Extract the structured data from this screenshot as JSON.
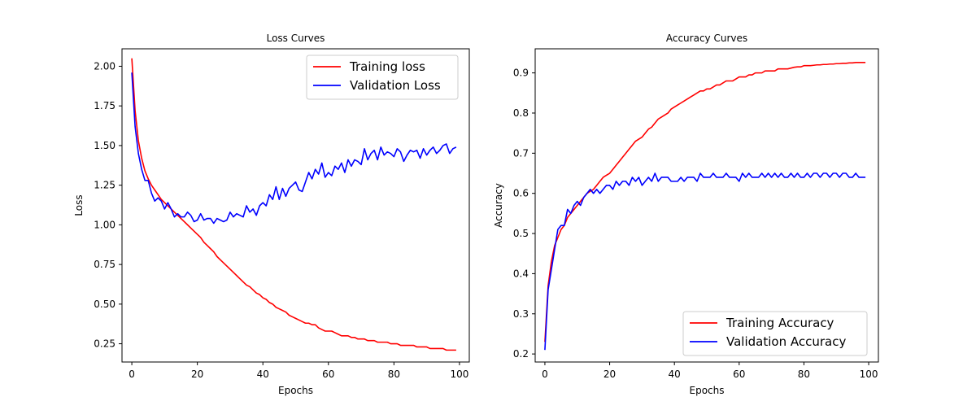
{
  "chart_data": [
    {
      "type": "line",
      "title": "Loss Curves",
      "xlabel": "Epochs",
      "ylabel": "Loss",
      "xlim": [
        -3,
        103
      ],
      "ylim": [
        0.135,
        2.11
      ],
      "xticks": [
        0,
        20,
        40,
        60,
        80,
        100
      ],
      "xtick_labels": [
        "0",
        "20",
        "40",
        "60",
        "80",
        "100"
      ],
      "yticks": [
        0.25,
        0.5,
        0.75,
        1.0,
        1.25,
        1.5,
        1.75,
        2.0
      ],
      "ytick_labels": [
        "0.25",
        "0.50",
        "0.75",
        "1.00",
        "1.25",
        "1.50",
        "1.75",
        "2.00"
      ],
      "grid": false,
      "legend_position": "top-right",
      "series": [
        {
          "name": "Training loss",
          "color": "#ff0000",
          "x": [
            0,
            1,
            2,
            3,
            4,
            5,
            6,
            7,
            8,
            9,
            10,
            11,
            12,
            13,
            14,
            15,
            16,
            17,
            18,
            19,
            20,
            21,
            22,
            23,
            24,
            25,
            26,
            27,
            28,
            29,
            30,
            31,
            32,
            33,
            34,
            35,
            36,
            37,
            38,
            39,
            40,
            41,
            42,
            43,
            44,
            45,
            46,
            47,
            48,
            49,
            50,
            51,
            52,
            53,
            54,
            55,
            56,
            57,
            58,
            59,
            60,
            61,
            62,
            63,
            64,
            65,
            66,
            67,
            68,
            69,
            70,
            71,
            72,
            73,
            74,
            75,
            76,
            77,
            78,
            79,
            80,
            81,
            82,
            83,
            84,
            85,
            86,
            87,
            88,
            89,
            90,
            91,
            92,
            93,
            94,
            95,
            96,
            97,
            98,
            99
          ],
          "values": [
            2.05,
            1.72,
            1.53,
            1.42,
            1.34,
            1.29,
            1.25,
            1.22,
            1.19,
            1.16,
            1.14,
            1.12,
            1.1,
            1.08,
            1.06,
            1.04,
            1.02,
            1.0,
            0.98,
            0.96,
            0.94,
            0.92,
            0.89,
            0.87,
            0.85,
            0.83,
            0.8,
            0.78,
            0.76,
            0.74,
            0.72,
            0.7,
            0.68,
            0.66,
            0.64,
            0.62,
            0.61,
            0.59,
            0.57,
            0.56,
            0.54,
            0.53,
            0.51,
            0.5,
            0.48,
            0.47,
            0.46,
            0.45,
            0.43,
            0.42,
            0.41,
            0.4,
            0.39,
            0.38,
            0.38,
            0.37,
            0.37,
            0.35,
            0.34,
            0.33,
            0.33,
            0.33,
            0.32,
            0.31,
            0.3,
            0.3,
            0.3,
            0.29,
            0.29,
            0.28,
            0.28,
            0.28,
            0.27,
            0.27,
            0.27,
            0.26,
            0.26,
            0.26,
            0.26,
            0.25,
            0.25,
            0.25,
            0.24,
            0.24,
            0.24,
            0.24,
            0.24,
            0.23,
            0.23,
            0.23,
            0.23,
            0.22,
            0.22,
            0.22,
            0.22,
            0.22,
            0.21,
            0.21,
            0.21,
            0.21
          ]
        },
        {
          "name": "Validation Loss",
          "color": "#0000ff",
          "x": [
            0,
            1,
            2,
            3,
            4,
            5,
            6,
            7,
            8,
            9,
            10,
            11,
            12,
            13,
            14,
            15,
            16,
            17,
            18,
            19,
            20,
            21,
            22,
            23,
            24,
            25,
            26,
            27,
            28,
            29,
            30,
            31,
            32,
            33,
            34,
            35,
            36,
            37,
            38,
            39,
            40,
            41,
            42,
            43,
            44,
            45,
            46,
            47,
            48,
            49,
            50,
            51,
            52,
            53,
            54,
            55,
            56,
            57,
            58,
            59,
            60,
            61,
            62,
            63,
            64,
            65,
            66,
            67,
            68,
            69,
            70,
            71,
            72,
            73,
            74,
            75,
            76,
            77,
            78,
            79,
            80,
            81,
            82,
            83,
            84,
            85,
            86,
            87,
            88,
            89,
            90,
            91,
            92,
            93,
            94,
            95,
            96,
            97,
            98,
            99
          ],
          "values": [
            1.96,
            1.62,
            1.45,
            1.35,
            1.28,
            1.28,
            1.2,
            1.15,
            1.17,
            1.15,
            1.1,
            1.14,
            1.1,
            1.05,
            1.07,
            1.05,
            1.05,
            1.08,
            1.06,
            1.02,
            1.03,
            1.07,
            1.03,
            1.04,
            1.04,
            1.01,
            1.04,
            1.03,
            1.02,
            1.03,
            1.08,
            1.05,
            1.07,
            1.06,
            1.05,
            1.12,
            1.08,
            1.1,
            1.06,
            1.12,
            1.14,
            1.12,
            1.19,
            1.16,
            1.24,
            1.16,
            1.23,
            1.18,
            1.23,
            1.25,
            1.27,
            1.22,
            1.21,
            1.27,
            1.33,
            1.29,
            1.35,
            1.32,
            1.39,
            1.3,
            1.33,
            1.31,
            1.37,
            1.35,
            1.39,
            1.33,
            1.41,
            1.37,
            1.41,
            1.4,
            1.38,
            1.48,
            1.41,
            1.45,
            1.47,
            1.41,
            1.49,
            1.44,
            1.46,
            1.45,
            1.43,
            1.48,
            1.46,
            1.4,
            1.44,
            1.47,
            1.46,
            1.47,
            1.42,
            1.48,
            1.44,
            1.47,
            1.49,
            1.45,
            1.47,
            1.5,
            1.51,
            1.45,
            1.48,
            1.49
          ]
        }
      ]
    },
    {
      "type": "line",
      "title": "Accuracy Curves",
      "xlabel": "Epochs",
      "ylabel": "Accuracy",
      "xlim": [
        -3,
        103
      ],
      "ylim": [
        0.18,
        0.96
      ],
      "xticks": [
        0,
        20,
        40,
        60,
        80,
        100
      ],
      "xtick_labels": [
        "0",
        "20",
        "40",
        "60",
        "80",
        "100"
      ],
      "yticks": [
        0.2,
        0.3,
        0.4,
        0.5,
        0.6,
        0.7,
        0.8,
        0.9
      ],
      "ytick_labels": [
        "0.2",
        "0.3",
        "0.4",
        "0.5",
        "0.6",
        "0.7",
        "0.8",
        "0.9"
      ],
      "grid": false,
      "legend_position": "bottom-right",
      "series": [
        {
          "name": "Training Accuracy",
          "color": "#ff0000",
          "x": [
            0,
            1,
            2,
            3,
            4,
            5,
            6,
            7,
            8,
            9,
            10,
            11,
            12,
            13,
            14,
            15,
            16,
            17,
            18,
            19,
            20,
            21,
            22,
            23,
            24,
            25,
            26,
            27,
            28,
            29,
            30,
            31,
            32,
            33,
            34,
            35,
            36,
            37,
            38,
            39,
            40,
            41,
            42,
            43,
            44,
            45,
            46,
            47,
            48,
            49,
            50,
            51,
            52,
            53,
            54,
            55,
            56,
            57,
            58,
            59,
            60,
            61,
            62,
            63,
            64,
            65,
            66,
            67,
            68,
            69,
            70,
            71,
            72,
            73,
            74,
            75,
            76,
            77,
            78,
            79,
            80,
            81,
            82,
            83,
            84,
            85,
            86,
            87,
            88,
            89,
            90,
            91,
            92,
            93,
            94,
            95,
            96,
            97,
            98,
            99
          ],
          "values": [
            0.23,
            0.37,
            0.43,
            0.47,
            0.49,
            0.51,
            0.52,
            0.54,
            0.55,
            0.56,
            0.57,
            0.58,
            0.59,
            0.6,
            0.605,
            0.61,
            0.62,
            0.63,
            0.64,
            0.645,
            0.65,
            0.66,
            0.67,
            0.68,
            0.69,
            0.7,
            0.71,
            0.72,
            0.73,
            0.735,
            0.74,
            0.75,
            0.76,
            0.765,
            0.775,
            0.785,
            0.79,
            0.795,
            0.8,
            0.81,
            0.815,
            0.82,
            0.825,
            0.83,
            0.835,
            0.84,
            0.845,
            0.85,
            0.855,
            0.855,
            0.86,
            0.86,
            0.865,
            0.87,
            0.87,
            0.875,
            0.88,
            0.88,
            0.88,
            0.885,
            0.89,
            0.89,
            0.89,
            0.895,
            0.895,
            0.9,
            0.9,
            0.9,
            0.905,
            0.905,
            0.905,
            0.905,
            0.91,
            0.91,
            0.91,
            0.91,
            0.912,
            0.914,
            0.915,
            0.915,
            0.918,
            0.918,
            0.918,
            0.919,
            0.92,
            0.92,
            0.921,
            0.921,
            0.922,
            0.922,
            0.923,
            0.923,
            0.924,
            0.924,
            0.925,
            0.925,
            0.926,
            0.926,
            0.926,
            0.926
          ]
        },
        {
          "name": "Validation Accuracy",
          "color": "#0000ff",
          "x": [
            0,
            1,
            2,
            3,
            4,
            5,
            6,
            7,
            8,
            9,
            10,
            11,
            12,
            13,
            14,
            15,
            16,
            17,
            18,
            19,
            20,
            21,
            22,
            23,
            24,
            25,
            26,
            27,
            28,
            29,
            30,
            31,
            32,
            33,
            34,
            35,
            36,
            37,
            38,
            39,
            40,
            41,
            42,
            43,
            44,
            45,
            46,
            47,
            48,
            49,
            50,
            51,
            52,
            53,
            54,
            55,
            56,
            57,
            58,
            59,
            60,
            61,
            62,
            63,
            64,
            65,
            66,
            67,
            68,
            69,
            70,
            71,
            72,
            73,
            74,
            75,
            76,
            77,
            78,
            79,
            80,
            81,
            82,
            83,
            84,
            85,
            86,
            87,
            88,
            89,
            90,
            91,
            92,
            93,
            94,
            95,
            96,
            97,
            98,
            99
          ],
          "values": [
            0.21,
            0.36,
            0.41,
            0.46,
            0.51,
            0.52,
            0.52,
            0.56,
            0.55,
            0.57,
            0.58,
            0.57,
            0.59,
            0.6,
            0.61,
            0.6,
            0.61,
            0.6,
            0.61,
            0.62,
            0.62,
            0.61,
            0.63,
            0.62,
            0.63,
            0.63,
            0.62,
            0.64,
            0.63,
            0.64,
            0.62,
            0.63,
            0.64,
            0.63,
            0.65,
            0.63,
            0.64,
            0.64,
            0.64,
            0.63,
            0.63,
            0.63,
            0.64,
            0.63,
            0.64,
            0.64,
            0.64,
            0.63,
            0.65,
            0.64,
            0.64,
            0.64,
            0.65,
            0.64,
            0.64,
            0.64,
            0.65,
            0.64,
            0.64,
            0.64,
            0.63,
            0.65,
            0.64,
            0.65,
            0.64,
            0.64,
            0.64,
            0.65,
            0.64,
            0.65,
            0.64,
            0.65,
            0.64,
            0.65,
            0.64,
            0.64,
            0.65,
            0.64,
            0.65,
            0.64,
            0.64,
            0.65,
            0.64,
            0.65,
            0.65,
            0.64,
            0.65,
            0.65,
            0.64,
            0.65,
            0.65,
            0.64,
            0.65,
            0.65,
            0.64,
            0.64,
            0.65,
            0.64,
            0.64,
            0.64
          ]
        }
      ]
    }
  ]
}
